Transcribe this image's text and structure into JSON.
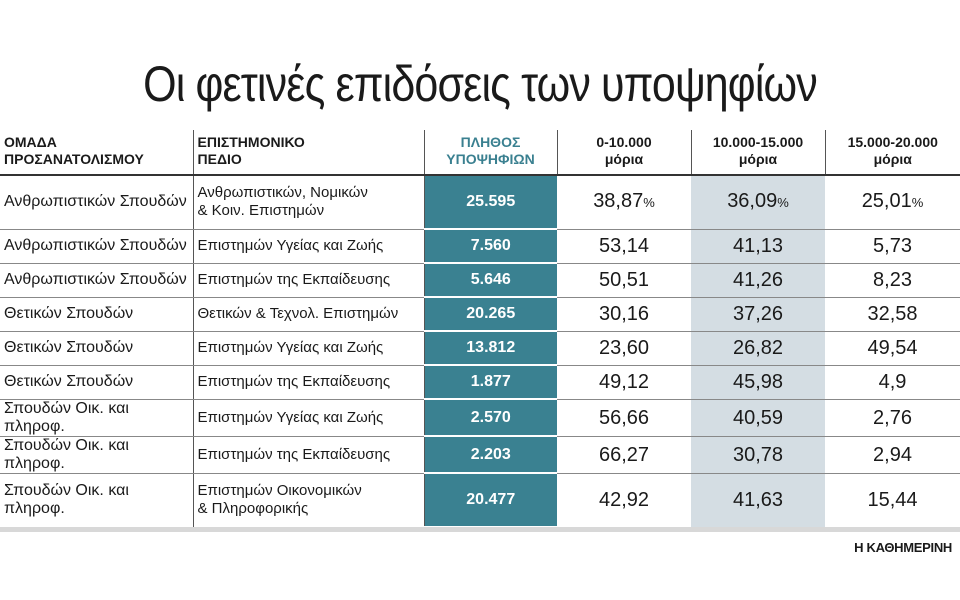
{
  "title": "Οι φετινές επιδόσεις των υποψηφίων",
  "chart_data": {
    "type": "table",
    "title": "Οι φετινές επιδόσεις των υποψηφίων",
    "columns": [
      "ΟΜΑΔΑ ΠΡΟΣΑΝΑΤΟΛΙΣΜΟΥ",
      "ΕΠΙΣΤΗΜΟΝΙΚΟ ΠΕΔΙΟ",
      "ΠΛΗΘΟΣ ΥΠΟΨΗΦΙΩΝ",
      "0-10.000 μόρια",
      "10.000-15.000 μόρια",
      "15.000-20.000 μόρια"
    ],
    "column_lines": [
      [
        "ΟΜΑΔΑ",
        "ΠΡΟΣΑΝΑΤΟΛΙΣΜΟΥ"
      ],
      [
        "ΕΠΙΣΤΗΜΟΝΙΚΟ",
        "ΠΕΔΙΟ"
      ],
      [
        "ΠΛΗΘΟΣ",
        "ΥΠΟΨΗΦΙΩΝ"
      ],
      [
        "0-10.000",
        "μόρια"
      ],
      [
        "10.000-15.000",
        "μόρια"
      ],
      [
        "15.000-20.000",
        "μόρια"
      ]
    ],
    "percent_sign": "%",
    "rows": [
      {
        "group": "Ανθρωπιστικών Σπουδών",
        "field": [
          "Ανθρωπιστικών, Νομικών",
          "& Κοιν. Επιστημών"
        ],
        "count": "25.595",
        "v": [
          "38,87",
          "36,09",
          "25,01"
        ]
      },
      {
        "group": "Ανθρωπιστικών Σπουδών",
        "field": [
          "Επιστημών Υγείας και Ζωής"
        ],
        "count": "7.560",
        "v": [
          "53,14",
          "41,13",
          "5,73"
        ]
      },
      {
        "group": "Ανθρωπιστικών Σπουδών",
        "field": [
          "Επιστημών της Εκπαίδευσης"
        ],
        "count": "5.646",
        "v": [
          "50,51",
          "41,26",
          "8,23"
        ]
      },
      {
        "group": "Θετικών Σπουδών",
        "field": [
          "Θετικών & Τεχνολ. Επιστημών"
        ],
        "count": "20.265",
        "v": [
          "30,16",
          "37,26",
          "32,58"
        ]
      },
      {
        "group": "Θετικών Σπουδών",
        "field": [
          "Επιστημών Υγείας και Ζωής"
        ],
        "count": "13.812",
        "v": [
          "23,60",
          "26,82",
          "49,54"
        ]
      },
      {
        "group": "Θετικών Σπουδών",
        "field": [
          "Επιστημών της Εκπαίδευσης"
        ],
        "count": "1.877",
        "v": [
          "49,12",
          "45,98",
          "4,9"
        ]
      },
      {
        "group": "Σπουδών Οικ. και πληροφ.",
        "field": [
          "Επιστημών Υγείας και Ζωής"
        ],
        "count": "2.570",
        "v": [
          "56,66",
          "40,59",
          "2,76"
        ]
      },
      {
        "group": "Σπουδών Οικ. και πληροφ.",
        "field": [
          "Επιστημών της Εκπαίδευσης"
        ],
        "count": "2.203",
        "v": [
          "66,27",
          "30,78",
          "2,94"
        ]
      },
      {
        "group": "Σπουδών Οικ. και πληροφ.",
        "field": [
          "Επιστημών Οικονομικών",
          "& Πληροφορικής"
        ],
        "count": "20.477",
        "v": [
          "42,92",
          "41,63",
          "15,44"
        ]
      }
    ],
    "colors": {
      "count_bg": "#3a8191",
      "highlight_bg": "#d4dde3"
    }
  },
  "source": "Η ΚΑΘΗΜΕΡΙΝΗ"
}
